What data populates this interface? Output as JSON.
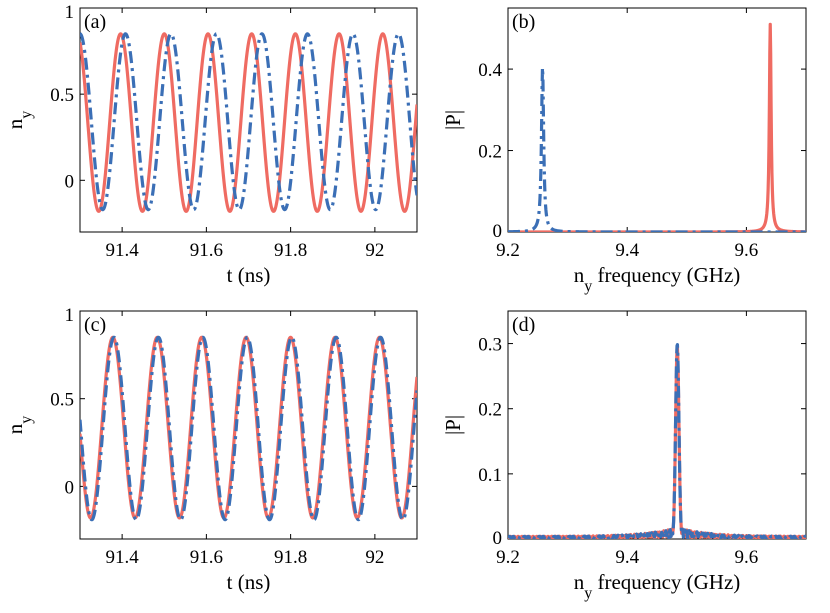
{
  "colors": {
    "series_solid": "#EF6B62",
    "series_dashdot": "#3B6FB6"
  },
  "chart_data": [
    {
      "panel": "(a)",
      "type": "line",
      "xlabel": "t (ns)",
      "ylabel": {
        "main": "n",
        "sub": "y"
      },
      "xlim": [
        91.3,
        92.1
      ],
      "ylim": [
        -0.3,
        1
      ],
      "xticks": [
        "91.4",
        "91.6",
        "91.8",
        "92"
      ],
      "yticks": [
        "0",
        "0.5",
        "1"
      ],
      "series": [
        {
          "style": "solid",
          "color": "#EF6B62",
          "amplitude": 0.515,
          "offset": 0.335,
          "freq_ghz": 9.64,
          "phase_anchor_t": 91.3,
          "phase_anchor_y": 0.8
        },
        {
          "style": "dash-dot",
          "color": "#3B6FB6",
          "amplitude": 0.51,
          "offset": 0.34,
          "freq_ghz": 9.26,
          "phase_anchor_t": 91.3,
          "phase_anchor_y": 0.85
        }
      ]
    },
    {
      "panel": "(b)",
      "type": "line",
      "xlabel": {
        "pre": "n",
        "sub": "y",
        "post": " frequency (GHz)"
      },
      "ylabel": "|P|",
      "xlim": [
        9.2,
        9.7
      ],
      "ylim": [
        0,
        0.55
      ],
      "xticks": [
        "9.2",
        "9.4",
        "9.6"
      ],
      "yticks": [
        "0",
        "0.2",
        "0.4"
      ],
      "series": [
        {
          "style": "solid",
          "color": "#EF6B62",
          "peak_x": 9.64,
          "peak_y": 0.51,
          "width": 0.0018
        },
        {
          "style": "dash-dot",
          "color": "#3B6FB6",
          "peak_x": 9.258,
          "peak_y": 0.405,
          "width": 0.0022
        }
      ]
    },
    {
      "panel": "(c)",
      "type": "line",
      "xlabel": "t (ns)",
      "ylabel": {
        "main": "n",
        "sub": "y"
      },
      "xlim": [
        91.3,
        92.1
      ],
      "ylim": [
        -0.3,
        1
      ],
      "xticks": [
        "91.4",
        "91.6",
        "91.8",
        "92"
      ],
      "yticks": [
        "0",
        "0.5",
        "1"
      ],
      "series": [
        {
          "style": "solid",
          "color": "#EF6B62",
          "amplitude": 0.515,
          "offset": 0.335,
          "freq_ghz": 9.48,
          "phase_anchor_t": 91.3,
          "phase_anchor_y": 0.3
        },
        {
          "style": "dash-dot",
          "color": "#3B6FB6",
          "amplitude": 0.52,
          "offset": 0.33,
          "freq_ghz": 9.48,
          "phase_anchor_t": 91.3,
          "phase_anchor_y": 0.38
        }
      ]
    },
    {
      "panel": "(d)",
      "type": "line",
      "xlabel": {
        "pre": "n",
        "sub": "y",
        "post": " frequency (GHz)"
      },
      "ylabel": "|P|",
      "xlim": [
        9.2,
        9.7
      ],
      "ylim": [
        0,
        0.35
      ],
      "xticks": [
        "9.2",
        "9.4",
        "9.6"
      ],
      "yticks": [
        "0",
        "0.1",
        "0.2",
        "0.3"
      ],
      "series": [
        {
          "style": "solid",
          "color": "#EF6B62",
          "peak_x": 9.484,
          "peak_y": 0.295
        },
        {
          "style": "dash-dot",
          "color": "#3B6FB6",
          "peak_x": 9.484,
          "peak_y": 0.3
        }
      ]
    }
  ]
}
